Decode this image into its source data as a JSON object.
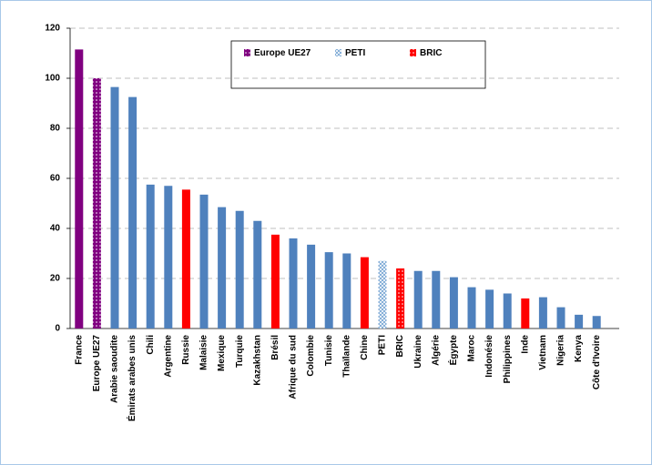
{
  "chart_data": {
    "type": "bar",
    "categories": [
      "France",
      "Europe UE27",
      "Arabie saoudite",
      "Émirats arabes unis",
      "Chili",
      "Argentine",
      "Russie",
      "Malaisie",
      "Mexique",
      "Turquie",
      "Kazakhstan",
      "Brésil",
      "Afrique du sud",
      "Colombie",
      "Tunisie",
      "Thaïlande",
      "Chine",
      "PETI",
      "BRIC",
      "Ukraine",
      "Algérie",
      "Égypte",
      "Maroc",
      "Indonésie",
      "Philippines",
      "Inde",
      "Vietnam",
      "Nigeria",
      "Kenya",
      "Côte d'Ivoire"
    ],
    "values": [
      111.5,
      100,
      96.5,
      92.5,
      57.5,
      57,
      55.5,
      53.5,
      48.5,
      47,
      43,
      37.5,
      36,
      33.5,
      30.5,
      30,
      28.5,
      27,
      24,
      23,
      23,
      20.5,
      16.5,
      15.5,
      14,
      12,
      12.5,
      8.5,
      5.5,
      5
    ],
    "colors": [
      "#800080",
      "#800080",
      "#4f81bd",
      "#4f81bd",
      "#4f81bd",
      "#4f81bd",
      "#ff0000",
      "#4f81bd",
      "#4f81bd",
      "#4f81bd",
      "#4f81bd",
      "#ff0000",
      "#4f81bd",
      "#4f81bd",
      "#4f81bd",
      "#4f81bd",
      "#ff0000",
      "#9dc3e6",
      "#ff0000",
      "#4f81bd",
      "#4f81bd",
      "#4f81bd",
      "#4f81bd",
      "#4f81bd",
      "#4f81bd",
      "#ff0000",
      "#4f81bd",
      "#4f81bd",
      "#4f81bd",
      "#4f81bd"
    ],
    "patterns": [
      "solid",
      "dotted",
      "solid",
      "solid",
      "solid",
      "solid",
      "solid",
      "solid",
      "solid",
      "solid",
      "solid",
      "solid",
      "solid",
      "solid",
      "solid",
      "solid",
      "solid",
      "hatched",
      "dotted",
      "solid",
      "solid",
      "solid",
      "solid",
      "solid",
      "solid",
      "solid",
      "solid",
      "solid",
      "solid",
      "solid"
    ],
    "legend": [
      {
        "name": "Europe UE27",
        "color": "#800080",
        "pattern": "dotted"
      },
      {
        "name": "PETI",
        "color": "#9dc3e6",
        "pattern": "hatched"
      },
      {
        "name": "BRIC",
        "color": "#ff0000",
        "pattern": "dotted"
      }
    ],
    "ylim": [
      0,
      120
    ],
    "yticks": [
      0,
      20,
      40,
      60,
      80,
      100,
      120
    ],
    "grid": true
  }
}
